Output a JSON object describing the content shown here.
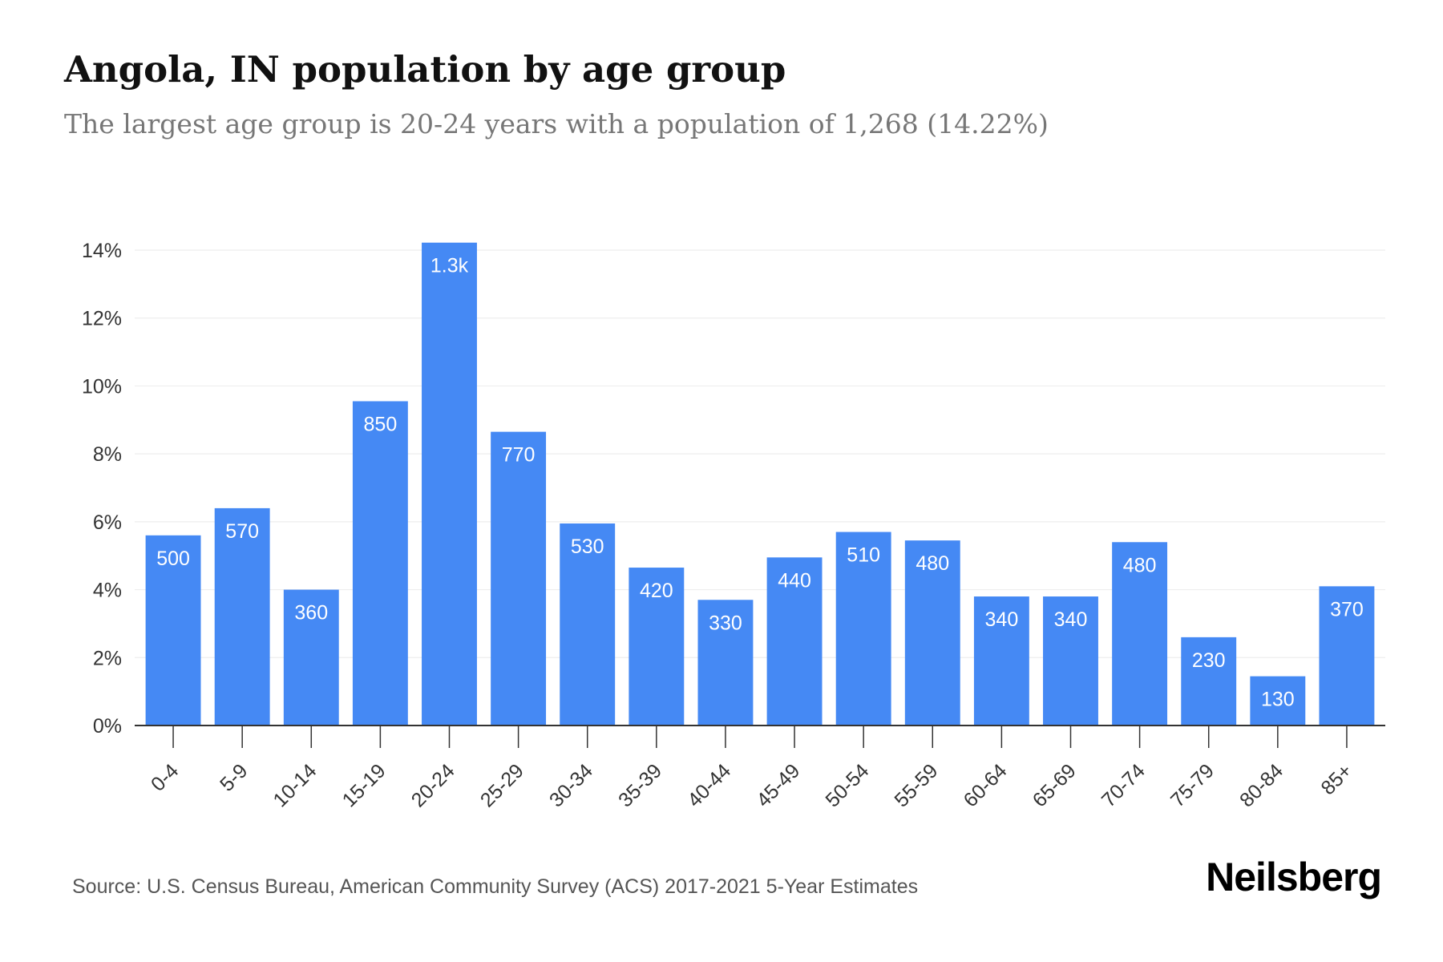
{
  "header": {
    "title": "Angola, IN population by age group",
    "subtitle": "The largest age group is 20-24 years with a population of 1,268 (14.22%)"
  },
  "footer": {
    "source": "Source: U.S. Census Bureau, American Community Survey (ACS) 2017-2021 5-Year Estimates",
    "brand": "Neilsberg"
  },
  "colors": {
    "bar": "#4589f4",
    "bar_label": "#ffffff",
    "grid": "#eeeeee",
    "axis": "#333333",
    "tick_text": "#333333"
  },
  "chart_data": {
    "type": "bar",
    "categories": [
      "0-4",
      "5-9",
      "10-14",
      "15-19",
      "20-24",
      "25-29",
      "30-34",
      "35-39",
      "40-44",
      "45-49",
      "50-54",
      "55-59",
      "60-64",
      "65-69",
      "70-74",
      "75-79",
      "80-84",
      "85+"
    ],
    "values": [
      5.6,
      6.4,
      4.0,
      9.55,
      14.22,
      8.65,
      5.95,
      4.65,
      3.7,
      4.95,
      5.7,
      5.45,
      3.8,
      3.8,
      5.4,
      2.6,
      1.45,
      4.1
    ],
    "data_labels": [
      "500",
      "570",
      "360",
      "850",
      "1.3k",
      "770",
      "530",
      "420",
      "330",
      "440",
      "510",
      "480",
      "340",
      "340",
      "480",
      "230",
      "130",
      "370"
    ],
    "y_ticks": [
      "0%",
      "2%",
      "4%",
      "6%",
      "8%",
      "10%",
      "12%",
      "14%"
    ],
    "ylim": [
      0,
      14
    ],
    "xlabel": "",
    "ylabel": "",
    "grid": true
  }
}
